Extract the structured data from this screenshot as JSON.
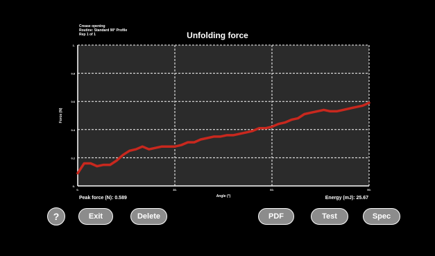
{
  "meta": {
    "line1": "Crease opening",
    "line2": "Routine: Standard 90° Profile",
    "line3": "Rep 1 of 1"
  },
  "readouts": {
    "peak_force": "Peak force (N): 0.589",
    "energy": "Energy (mJ): 25.67"
  },
  "buttons": {
    "help": "?",
    "exit": "Exit",
    "delete": "Delete",
    "pdf": "PDF",
    "test": "Test",
    "spec": "Spec"
  },
  "colors": {
    "background": "#000000",
    "plot_bg": "#2b2b2b",
    "series": "#c8281e",
    "button": "#8c8c8c"
  },
  "chart_data": {
    "type": "line",
    "title": "Unfolding force",
    "xlabel": "Angle (°)",
    "ylabel": "Force (N)",
    "xlim": [
      0,
      90
    ],
    "ylim": [
      0,
      1
    ],
    "xticks": [
      0,
      30,
      60,
      90
    ],
    "xtick_labels": [
      "0.",
      "30.",
      "60.",
      "90."
    ],
    "yticks": [
      0,
      0.2,
      0.4,
      0.6,
      0.8,
      1
    ],
    "ytick_labels": [
      "0.",
      "0.2",
      "0.4",
      "0.6",
      "0.8",
      "1."
    ],
    "grid": true,
    "series": [
      {
        "x": [
          0,
          2,
          4,
          6,
          8,
          10,
          12,
          14,
          16,
          18,
          20,
          22,
          24,
          26,
          28,
          30,
          32,
          34,
          36,
          38,
          40,
          42,
          44,
          46,
          48,
          50,
          52,
          54,
          56,
          58,
          60,
          62,
          64,
          66,
          68,
          70,
          72,
          74,
          76,
          78,
          80,
          82,
          84,
          86,
          88,
          90
        ],
        "y": [
          0.09,
          0.16,
          0.16,
          0.14,
          0.15,
          0.15,
          0.18,
          0.22,
          0.25,
          0.26,
          0.28,
          0.26,
          0.27,
          0.28,
          0.28,
          0.28,
          0.29,
          0.31,
          0.31,
          0.33,
          0.34,
          0.35,
          0.35,
          0.36,
          0.36,
          0.37,
          0.38,
          0.39,
          0.41,
          0.41,
          0.42,
          0.44,
          0.45,
          0.47,
          0.48,
          0.51,
          0.52,
          0.53,
          0.54,
          0.53,
          0.53,
          0.54,
          0.55,
          0.56,
          0.57,
          0.59
        ]
      }
    ]
  }
}
